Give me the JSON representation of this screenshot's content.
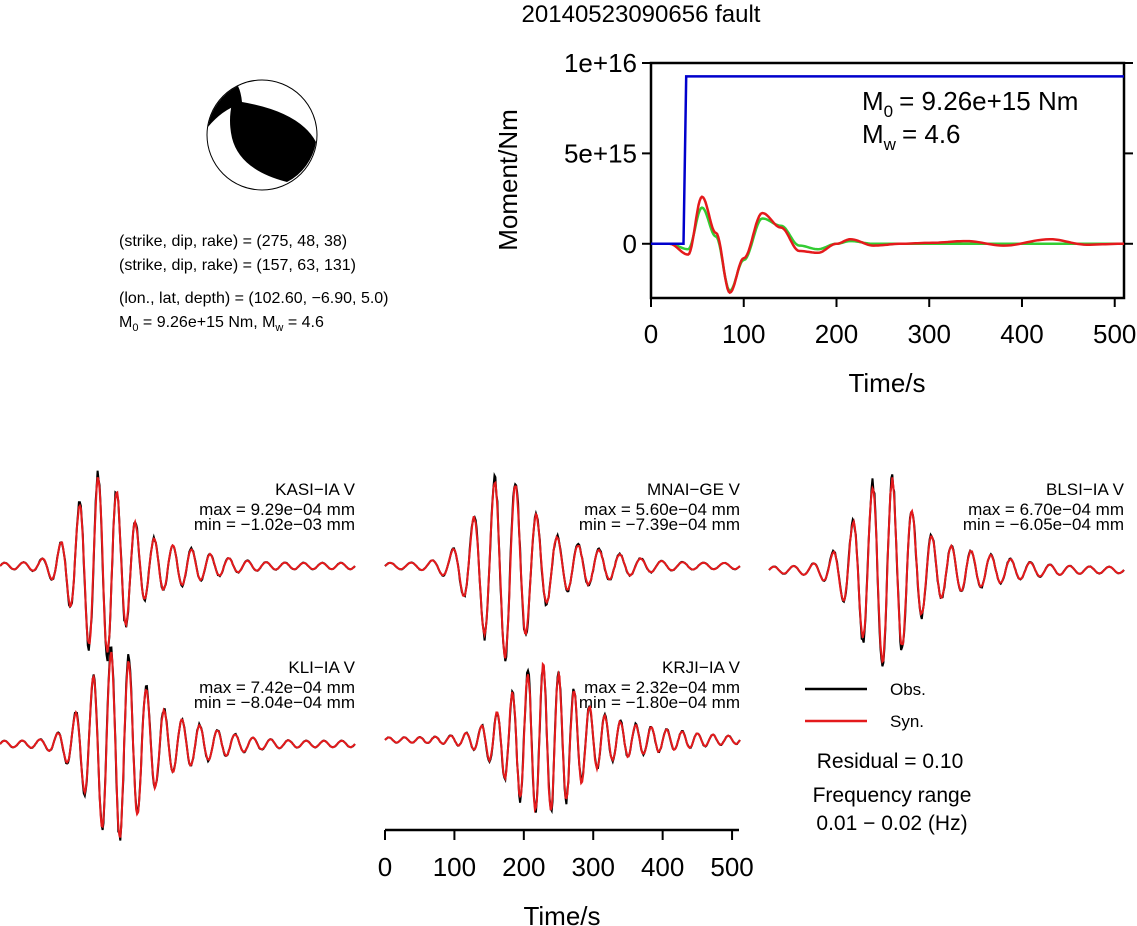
{
  "title": "20140523090656 fault",
  "beachball": {
    "color_fill": "#000000",
    "color_empty": "#ffffff"
  },
  "info": {
    "plane1": "(strike, dip, rake) = (275, 48, 38)",
    "plane2": "(strike, dip, rake) = (157, 63, 131)",
    "location": "(lon., lat, depth) = (102.60, −6.90, 5.0)",
    "m0_prefix": "M",
    "m0_sub": "0",
    "m0_text": " = 9.26e+15 Nm, M",
    "mw_sub": "w",
    "mw_text": " = 4.6"
  },
  "moment_panel": {
    "ylabel": "Moment/Nm",
    "xlabel": "Time/s",
    "ytick_labels": [
      "1e+16",
      "5e+15",
      "0"
    ],
    "ytick_values": [
      1e+16,
      5000000000000000.0,
      0
    ],
    "xticks": [
      0,
      100,
      200,
      300,
      400,
      500
    ],
    "ylim": [
      -3000000000000000.0,
      1e+16
    ],
    "xlim": [
      0,
      510
    ],
    "m0_label": "= 9.26e+15 Nm",
    "mw_label": "= 4.6",
    "m_letter": "M",
    "m0_sub": "0",
    "mw_sub": "w"
  },
  "colors": {
    "obs": "#000000",
    "syn": "#e41a1c",
    "cumulative": "#0000cc",
    "rate_green": "#33cc33"
  },
  "stations": [
    {
      "name": "KASI−IA V",
      "max": "max = 9.29e−04 mm",
      "min": "min = −1.02e−03 mm"
    },
    {
      "name": "MNAI−GE V",
      "max": "max = 5.60e−04 mm",
      "min": "min = −7.39e−04 mm"
    },
    {
      "name": "BLSI−IA V",
      "max": "max = 6.70e−04 mm",
      "min": "min = −6.05e−04 mm"
    },
    {
      "name": "KLI−IA V",
      "max": "max = 7.42e−04 mm",
      "min": "min = −8.04e−04 mm"
    },
    {
      "name": "KRJI−IA V",
      "max": "max = 2.32e−04 mm",
      "min": "min = −1.80e−04 mm"
    }
  ],
  "waveform_axis": {
    "xlabel": "Time/s",
    "xticks": [
      0,
      100,
      200,
      300,
      400,
      500
    ],
    "xlim": [
      0,
      510
    ]
  },
  "legend": {
    "obs": "Obs.",
    "syn": "Syn.",
    "residual": "Residual = 0.10",
    "freq_title": "Frequency range",
    "freq_value": "0.01 − 0.02 (Hz)"
  },
  "chart_data": [
    {
      "type": "line",
      "title": "",
      "xlabel": "Time/s",
      "ylabel": "Moment/Nm",
      "xlim": [
        0,
        510
      ],
      "ylim": [
        -3000000000000000.0,
        1e+16
      ],
      "series": [
        {
          "x": [
            0,
            35,
            38,
            510
          ],
          "values": [
            0,
            0,
            9260000000000000.0,
            9260000000000000.0
          ]
        },
        {
          "x": [
            0,
            20,
            40,
            55,
            70,
            85,
            100,
            120,
            140,
            160,
            180,
            200,
            215,
            240,
            270,
            300,
            340,
            380,
            430,
            470,
            510
          ],
          "values": [
            0,
            0,
            -600000000000000.0,
            2600000000000000.0,
            600000000000000.0,
            -2700000000000000.0,
            -800000000000000.0,
            1700000000000000.0,
            900000000000000.0,
            -400000000000000.0,
            -500000000000000.0,
            0,
            250000000000000.0,
            -100000000000000.0,
            0,
            50000000000000.0,
            150000000000000.0,
            -100000000000000.0,
            250000000000000.0,
            -50000000000000.0,
            0
          ]
        },
        {
          "x": [
            0,
            20,
            40,
            55,
            70,
            85,
            100,
            120,
            140,
            160,
            180,
            200,
            215,
            240,
            270,
            300,
            340,
            380,
            430,
            470,
            510
          ],
          "values": [
            0,
            0,
            -300000000000000.0,
            2000000000000000.0,
            400000000000000.0,
            -2600000000000000.0,
            -900000000000000.0,
            1400000000000000.0,
            1000000000000000.0,
            -100000000000000.0,
            -300000000000000.0,
            0,
            150000000000000.0,
            0,
            0,
            0,
            0,
            0,
            0,
            0,
            0
          ]
        }
      ]
    }
  ]
}
